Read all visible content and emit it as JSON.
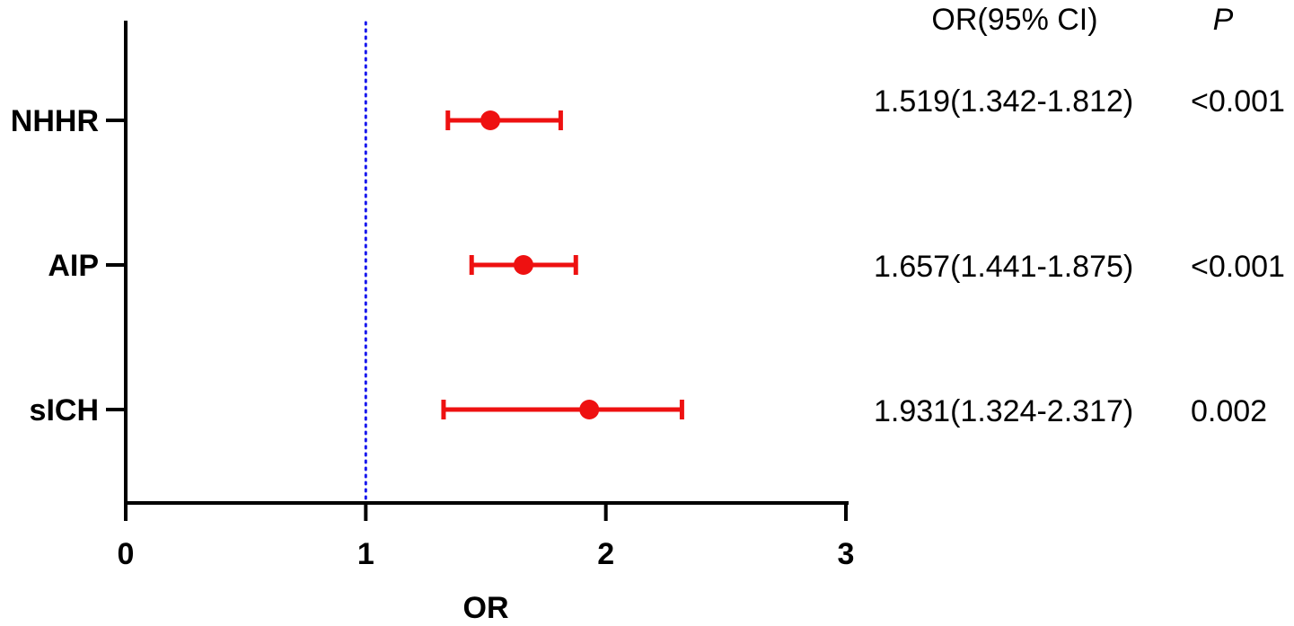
{
  "chart_data": {
    "type": "forest",
    "categories": [
      "NHHR",
      "AIP",
      "sICH"
    ],
    "estimates": [
      1.519,
      1.657,
      1.931
    ],
    "ci_lower": [
      1.342,
      1.441,
      1.324
    ],
    "ci_upper": [
      1.812,
      1.875,
      2.317
    ],
    "xlabel": "OR",
    "xlim": [
      0,
      3
    ],
    "xticks": [
      "0",
      "1",
      "2",
      "3"
    ],
    "reference_line": 1,
    "grid": false,
    "table": {
      "headers": [
        "OR(95% CI)",
        "P"
      ],
      "rows": [
        [
          "1.519(1.342-1.812)",
          "<0.001"
        ],
        [
          "1.657(1.441-1.875)",
          "<0.001"
        ],
        [
          "1.931(1.324-2.317)",
          "0.002"
        ]
      ]
    },
    "colors": {
      "marker": "#ee1111",
      "reference_line": "#1a1aee",
      "axis": "#000000"
    }
  }
}
